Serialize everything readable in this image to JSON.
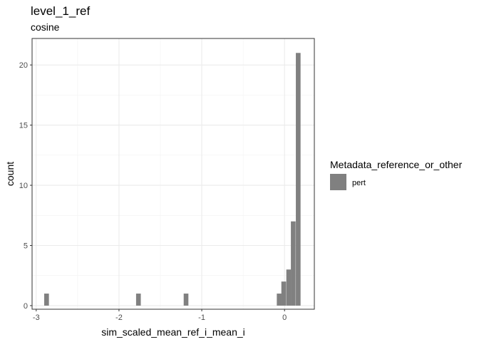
{
  "chart_data": {
    "type": "bar",
    "title": "level_1_ref",
    "subtitle": "cosine",
    "xlabel": "sim_scaled_mean_ref_i_mean_i",
    "ylabel": "count",
    "xlim": [
      -3.05,
      0.36
    ],
    "ylim": [
      -0.3,
      22.2
    ],
    "xticks": [
      -3,
      -2,
      -1,
      0
    ],
    "xtick_labels": [
      "-3",
      "-2",
      "-1",
      "0"
    ],
    "yticks": [
      0,
      5,
      10,
      15,
      20
    ],
    "ytick_labels": [
      "0",
      "5",
      "10",
      "15",
      "20"
    ],
    "grid": true,
    "bin_width": 0.057,
    "bins": [
      {
        "x": -2.875,
        "count": 1
      },
      {
        "x": -1.765,
        "count": 1
      },
      {
        "x": -1.19,
        "count": 1
      },
      {
        "x": -0.065,
        "count": 1
      },
      {
        "x": -0.01,
        "count": 2
      },
      {
        "x": 0.05,
        "count": 3
      },
      {
        "x": 0.105,
        "count": 7
      },
      {
        "x": 0.165,
        "count": 21
      }
    ],
    "series": [
      {
        "name": "pert",
        "color": "#808080"
      }
    ],
    "legend": {
      "title": "Metadata_reference_or_other",
      "position": "right"
    }
  }
}
